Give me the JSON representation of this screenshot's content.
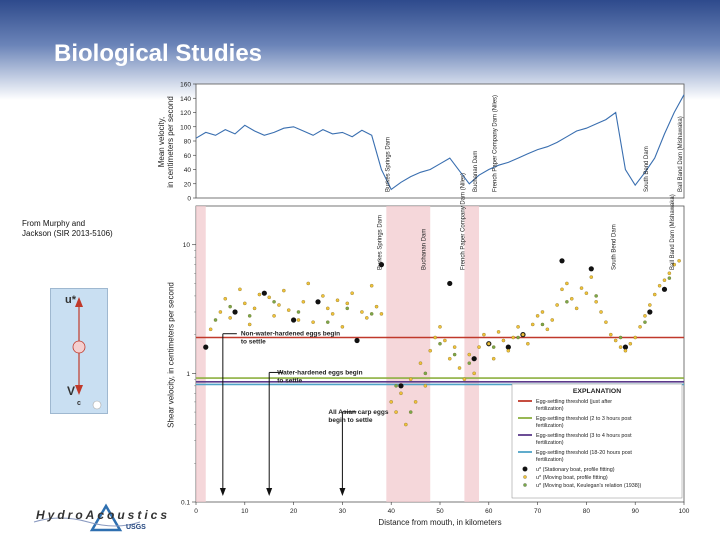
{
  "slide": {
    "title": "Biological Studies",
    "credit_line1": "From Murphy and",
    "credit_line2": "Jackson (SIR 2013-5106)"
  },
  "logo": {
    "word": "HydroAcoustics",
    "org": "USGS"
  },
  "diagram": {
    "top_label": "u*",
    "bottom_label": "V",
    "bottom_sub": "c"
  },
  "chart_data": [
    {
      "type": "line",
      "ylabel_line1": "Mean velocity,",
      "ylabel_line2": "in centimeters per second",
      "ylim": [
        0,
        160
      ],
      "yticks": [
        0,
        20,
        40,
        60,
        80,
        100,
        120,
        140,
        160
      ],
      "xlim": [
        0,
        100
      ],
      "series": [
        {
          "x": [
            0,
            2,
            4,
            6,
            8,
            10,
            12,
            14,
            16,
            18,
            20,
            22,
            24,
            26,
            28,
            30,
            32,
            34,
            36,
            38,
            40,
            42,
            44,
            46,
            48,
            50,
            52,
            54,
            56,
            58,
            60,
            62,
            64,
            66,
            68,
            70,
            72,
            74,
            76,
            78,
            80,
            82,
            84,
            86,
            88,
            90,
            92,
            94,
            96,
            98,
            100
          ],
          "y": [
            84,
            92,
            88,
            96,
            90,
            102,
            94,
            88,
            92,
            98,
            100,
            94,
            88,
            96,
            90,
            92,
            86,
            95,
            88,
            40,
            12,
            22,
            30,
            36,
            40,
            48,
            56,
            38,
            20,
            32,
            40,
            46,
            50,
            56,
            62,
            68,
            72,
            78,
            86,
            94,
            98,
            104,
            110,
            120,
            40,
            18,
            36,
            56,
            90,
            120,
            145
          ]
        }
      ],
      "annotations": [
        "Burkes Springs Dam",
        "Buchanan Dam",
        "French Paper Company Dam (Niles)",
        "South Bend Dam",
        "Ball Band Dam (Mishawaka)"
      ],
      "colors": {
        "line": "#3a6fb0"
      }
    },
    {
      "type": "scatter",
      "ylabel": "Shear velocity, in centimeters per second",
      "xlabel": "Distance from mouth, in kilometers",
      "yscale": "log",
      "ylim": [
        0.1,
        20
      ],
      "ytick_labels": [
        "0.1",
        "1",
        "10"
      ],
      "xlim": [
        0,
        100
      ],
      "xticks": [
        0,
        10,
        20,
        30,
        40,
        50,
        60,
        70,
        80,
        90,
        100
      ],
      "shaded_ranges_km": [
        [
          0,
          2
        ],
        [
          39,
          48
        ],
        [
          55,
          58
        ]
      ],
      "dam_labels": [
        "Burkes Springs Dam",
        "Buchanan Dam",
        "French Paper Company Dam (Niles)",
        "South Bend Dam",
        "Ball Band Dam (Mishawaka)"
      ],
      "thresholds": [
        {
          "name": "Egg-settling threshold (just after fertilization)",
          "y": 1.9,
          "color": "#c0392b"
        },
        {
          "name": "Egg-settling threshold (2 to 3 hours post fertilization)",
          "y": 0.92,
          "color": "#8db040"
        },
        {
          "name": "Egg-settling threshold (3 to 4 hours post fertilization)",
          "y": 0.86,
          "color": "#5b3a8a"
        },
        {
          "name": "Egg-settling threshold (18-20 hours post fertilization)",
          "y": 0.82,
          "color": "#4fa3c7"
        }
      ],
      "series": [
        {
          "name": "u* (Stationary boat, profile fitting)",
          "color": "#111111",
          "x": [
            2,
            8,
            14,
            20,
            25,
            33,
            38,
            42,
            52,
            57,
            60,
            64,
            67,
            75,
            81,
            88,
            93,
            96
          ],
          "y": [
            1.6,
            3.0,
            4.2,
            2.6,
            3.6,
            1.8,
            7.0,
            0.8,
            5.0,
            1.3,
            1.7,
            1.6,
            2.0,
            7.5,
            6.5,
            1.6,
            3.0,
            4.5
          ]
        },
        {
          "name": "u* (Moving boat, profile fitting)",
          "color": "#f0c23a",
          "x": [
            3,
            5,
            6,
            7,
            9,
            10,
            11,
            12,
            13,
            15,
            16,
            17,
            18,
            19,
            21,
            22,
            23,
            24,
            26,
            27,
            28,
            29,
            30,
            31,
            32,
            34,
            35,
            36,
            37,
            38,
            40,
            41,
            42,
            43,
            44,
            45,
            46,
            47,
            48,
            49,
            50,
            51,
            52,
            53,
            54,
            55,
            56,
            57,
            58,
            59,
            60,
            61,
            62,
            63,
            64,
            65,
            66,
            67,
            68,
            69,
            70,
            71,
            72,
            73,
            74,
            75,
            76,
            77,
            78,
            79,
            80,
            81,
            82,
            83,
            84,
            85,
            86,
            87,
            88,
            89,
            90,
            91,
            92,
            93,
            94,
            95,
            96,
            97,
            98,
            99
          ],
          "y": [
            2.2,
            3.0,
            3.8,
            2.7,
            4.5,
            3.5,
            2.4,
            3.2,
            4.1,
            3.9,
            2.8,
            3.4,
            4.4,
            3.1,
            2.6,
            3.6,
            5.0,
            2.5,
            4.0,
            3.2,
            2.9,
            3.7,
            2.3,
            3.5,
            4.2,
            3.0,
            2.7,
            4.8,
            3.3,
            2.9,
            0.6,
            0.5,
            0.7,
            0.4,
            0.9,
            0.6,
            1.2,
            0.8,
            1.5,
            1.9,
            2.3,
            1.8,
            1.3,
            1.6,
            1.1,
            0.9,
            1.4,
            1.0,
            1.6,
            2.0,
            1.7,
            1.3,
            2.1,
            1.8,
            1.5,
            1.9,
            2.3,
            2.0,
            1.7,
            2.4,
            2.8,
            3.0,
            2.2,
            2.6,
            3.4,
            4.5,
            5.0,
            3.8,
            3.2,
            4.6,
            4.2,
            5.6,
            3.6,
            3.0,
            2.5,
            2.0,
            1.8,
            1.6,
            1.5,
            1.7,
            1.9,
            2.3,
            2.8,
            3.4,
            4.1,
            4.8,
            5.3,
            6.0,
            7.0,
            7.5
          ]
        },
        {
          "name": "u* (Moving boat, Keulegan's relation (1938))",
          "color": "#7aa84a",
          "x": [
            4,
            7,
            11,
            16,
            21,
            27,
            31,
            36,
            41,
            44,
            47,
            50,
            53,
            56,
            61,
            66,
            71,
            76,
            82,
            87,
            92,
            97
          ],
          "y": [
            2.6,
            3.3,
            2.8,
            3.6,
            3.0,
            2.5,
            3.2,
            2.9,
            0.8,
            0.5,
            1.0,
            1.7,
            1.4,
            1.2,
            1.6,
            1.9,
            2.4,
            3.6,
            4.0,
            1.9,
            2.5,
            5.5
          ]
        }
      ],
      "annotations": [
        "Non-water-hardened eggs begin to settle",
        "Water-hardened eggs begin to settle",
        "All Asian carp eggs begin to settle"
      ],
      "legend_title": "EXPLANATION",
      "legend_placement": "bottom-right"
    }
  ]
}
